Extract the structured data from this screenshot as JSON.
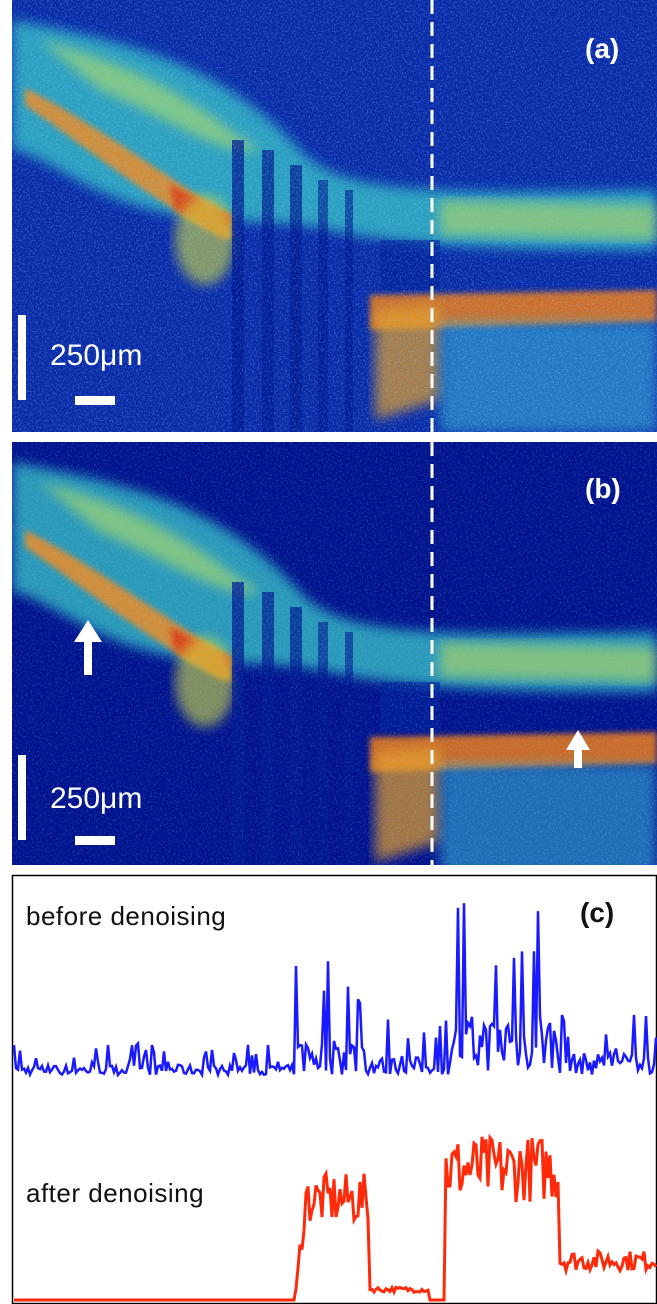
{
  "panels": [
    {
      "label": "(a)",
      "scale_bar": "250μm"
    },
    {
      "label": "(b)",
      "scale_bar": "250μm"
    },
    {
      "label": "(c)",
      "traces": [
        "before denoising",
        "after denoising"
      ]
    }
  ]
}
